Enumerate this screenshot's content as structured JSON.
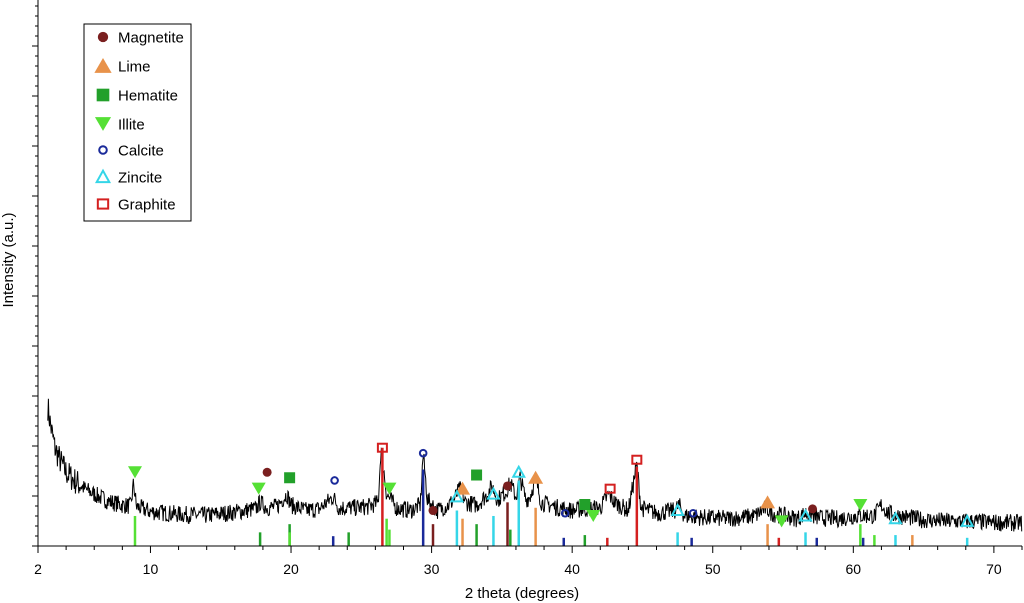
{
  "chart_data": {
    "type": "line",
    "title": "",
    "xlabel": "2 theta (degrees)",
    "ylabel": "Intensity (a.u.)",
    "xlim": [
      2,
      72
    ],
    "ylim": [
      0,
      100
    ],
    "x_ticks": [
      2,
      10,
      20,
      30,
      40,
      50,
      60,
      70
    ],
    "y_tick_labels": false,
    "grid": false,
    "legend_position": "top-left",
    "pattern": {
      "name": "",
      "color": "#000000",
      "points": [
        [
          2.7,
          25.5
        ],
        [
          2.9,
          22.0
        ],
        [
          3.2,
          18.0
        ],
        [
          3.6,
          15.5
        ],
        [
          4.0,
          13.5
        ],
        [
          4.6,
          12.0
        ],
        [
          5.3,
          10.5
        ],
        [
          6.0,
          9.5
        ],
        [
          7.0,
          8.2
        ],
        [
          8.0,
          7.5
        ],
        [
          8.6,
          7.3
        ],
        [
          8.8,
          11.5
        ],
        [
          9.0,
          7.2
        ],
        [
          10.0,
          6.3
        ],
        [
          12.0,
          5.8
        ],
        [
          14.0,
          5.6
        ],
        [
          16.0,
          6.2
        ],
        [
          17.5,
          6.8
        ],
        [
          17.8,
          8.0
        ],
        [
          18.3,
          7.0
        ],
        [
          19.0,
          7.2
        ],
        [
          19.7,
          9.5
        ],
        [
          20.0,
          7.5
        ],
        [
          21.0,
          6.5
        ],
        [
          22.0,
          6.8
        ],
        [
          23.0,
          9.0
        ],
        [
          23.4,
          7.0
        ],
        [
          24.5,
          7.0
        ],
        [
          25.5,
          7.2
        ],
        [
          26.2,
          8.0
        ],
        [
          26.4,
          18.0
        ],
        [
          26.8,
          9.5
        ],
        [
          27.5,
          7.0
        ],
        [
          28.5,
          6.5
        ],
        [
          29.2,
          7.5
        ],
        [
          29.4,
          17.0
        ],
        [
          29.7,
          8.5
        ],
        [
          30.4,
          6.5
        ],
        [
          31.2,
          7.5
        ],
        [
          31.6,
          8.5
        ],
        [
          32.0,
          10.5
        ],
        [
          32.4,
          8.0
        ],
        [
          33.2,
          7.5
        ],
        [
          34.0,
          9.5
        ],
        [
          34.3,
          11.0
        ],
        [
          34.7,
          8.5
        ],
        [
          35.3,
          10.0
        ],
        [
          35.6,
          11.5
        ],
        [
          36.0,
          9.0
        ],
        [
          36.3,
          12.5
        ],
        [
          36.7,
          8.5
        ],
        [
          37.0,
          9.0
        ],
        [
          37.4,
          12.5
        ],
        [
          37.8,
          8.0
        ],
        [
          39.0,
          7.0
        ],
        [
          40.0,
          6.5
        ],
        [
          41.0,
          6.8
        ],
        [
          42.0,
          7.0
        ],
        [
          42.6,
          9.5
        ],
        [
          43.0,
          8.0
        ],
        [
          44.0,
          6.5
        ],
        [
          44.6,
          15.0
        ],
        [
          44.9,
          7.0
        ],
        [
          46.0,
          6.0
        ],
        [
          47.3,
          6.5
        ],
        [
          47.6,
          7.5
        ],
        [
          48.0,
          5.5
        ],
        [
          49.5,
          5.2
        ],
        [
          51.0,
          5.0
        ],
        [
          53.0,
          5.5
        ],
        [
          53.8,
          7.0
        ],
        [
          54.2,
          6.0
        ],
        [
          56.0,
          5.0
        ],
        [
          56.6,
          6.0
        ],
        [
          57.5,
          5.2
        ],
        [
          59.0,
          5.0
        ],
        [
          60.4,
          5.6
        ],
        [
          61.5,
          5.5
        ],
        [
          62.0,
          7.5
        ],
        [
          62.5,
          6.0
        ],
        [
          63.3,
          5.5
        ],
        [
          65.0,
          4.8
        ],
        [
          67.0,
          4.5
        ],
        [
          68.5,
          4.5
        ],
        [
          70.0,
          4.3
        ],
        [
          72.0,
          4.2
        ]
      ]
    },
    "phases": [
      {
        "name": "Magnetite",
        "marker": "circle",
        "color": "#7a1f1f",
        "peaks": [
          [
            18.3,
            13.5
          ],
          [
            30.1,
            6.5
          ],
          [
            35.4,
            11.0
          ],
          [
            57.1,
            6.8
          ]
        ],
        "sticks": [
          [
            30.1,
            4
          ],
          [
            35.4,
            8
          ]
        ]
      },
      {
        "name": "Lime",
        "marker": "triangle-up",
        "color": "#e8924a",
        "peaks": [
          [
            32.2,
            10.5
          ],
          [
            37.4,
            12.5
          ],
          [
            53.9,
            8.0
          ]
        ],
        "sticks": [
          [
            32.2,
            5
          ],
          [
            37.4,
            7
          ],
          [
            53.9,
            4
          ],
          [
            64.2,
            2
          ]
        ]
      },
      {
        "name": "Hematite",
        "marker": "square",
        "color": "#22a02a",
        "peaks": [
          [
            19.9,
            12.5
          ],
          [
            33.2,
            13.0
          ],
          [
            40.9,
            7.6
          ]
        ],
        "sticks": [
          [
            17.8,
            2.5
          ],
          [
            19.9,
            4
          ],
          [
            24.1,
            2.5
          ],
          [
            33.2,
            4
          ],
          [
            35.6,
            3
          ],
          [
            40.9,
            2
          ]
        ]
      },
      {
        "name": "Illite",
        "marker": "triangle-down",
        "color": "#55e035",
        "peaks": [
          [
            8.9,
            13.5
          ],
          [
            17.7,
            10.5
          ],
          [
            27.0,
            10.5
          ],
          [
            41.5,
            5.5
          ],
          [
            54.9,
            4.5
          ],
          [
            60.5,
            7.5
          ]
        ],
        "sticks": [
          [
            8.9,
            5.5
          ],
          [
            19.9,
            2.5
          ],
          [
            26.8,
            5
          ],
          [
            27.0,
            3
          ],
          [
            60.5,
            4
          ],
          [
            61.5,
            2
          ]
        ]
      },
      {
        "name": "Calcite",
        "marker": "circle-open",
        "color": "#1a2a9a",
        "peaks": [
          [
            23.1,
            12.0
          ],
          [
            29.4,
            17.0
          ],
          [
            39.5,
            6.0
          ],
          [
            48.6,
            6.0
          ]
        ],
        "sticks": [
          [
            23.0,
            1.8
          ],
          [
            29.4,
            14
          ],
          [
            39.4,
            1.5
          ],
          [
            48.5,
            1.5
          ],
          [
            57.4,
            1.5
          ],
          [
            60.7,
            1.5
          ]
        ]
      },
      {
        "name": "Zincite",
        "marker": "triangle-up-open",
        "color": "#35d6e8",
        "peaks": [
          [
            31.8,
            9.0
          ],
          [
            34.4,
            9.5
          ],
          [
            36.2,
            13.5
          ],
          [
            47.5,
            6.5
          ],
          [
            56.6,
            5.5
          ],
          [
            63.0,
            5.0
          ],
          [
            68.1,
            4.5
          ]
        ],
        "sticks": [
          [
            31.8,
            6.5
          ],
          [
            34.4,
            5.5
          ],
          [
            36.2,
            12
          ],
          [
            47.5,
            2.5
          ],
          [
            56.6,
            2.5
          ],
          [
            63.0,
            2
          ],
          [
            68.1,
            1.5
          ]
        ]
      },
      {
        "name": "Graphite",
        "marker": "square-open",
        "color": "#d42020",
        "peaks": [
          [
            26.5,
            18.0
          ],
          [
            42.7,
            10.5
          ],
          [
            44.6,
            15.8
          ]
        ],
        "sticks": [
          [
            26.5,
            18
          ],
          [
            42.5,
            1.5
          ],
          [
            44.6,
            14.5
          ],
          [
            54.7,
            1.5
          ]
        ]
      }
    ]
  }
}
